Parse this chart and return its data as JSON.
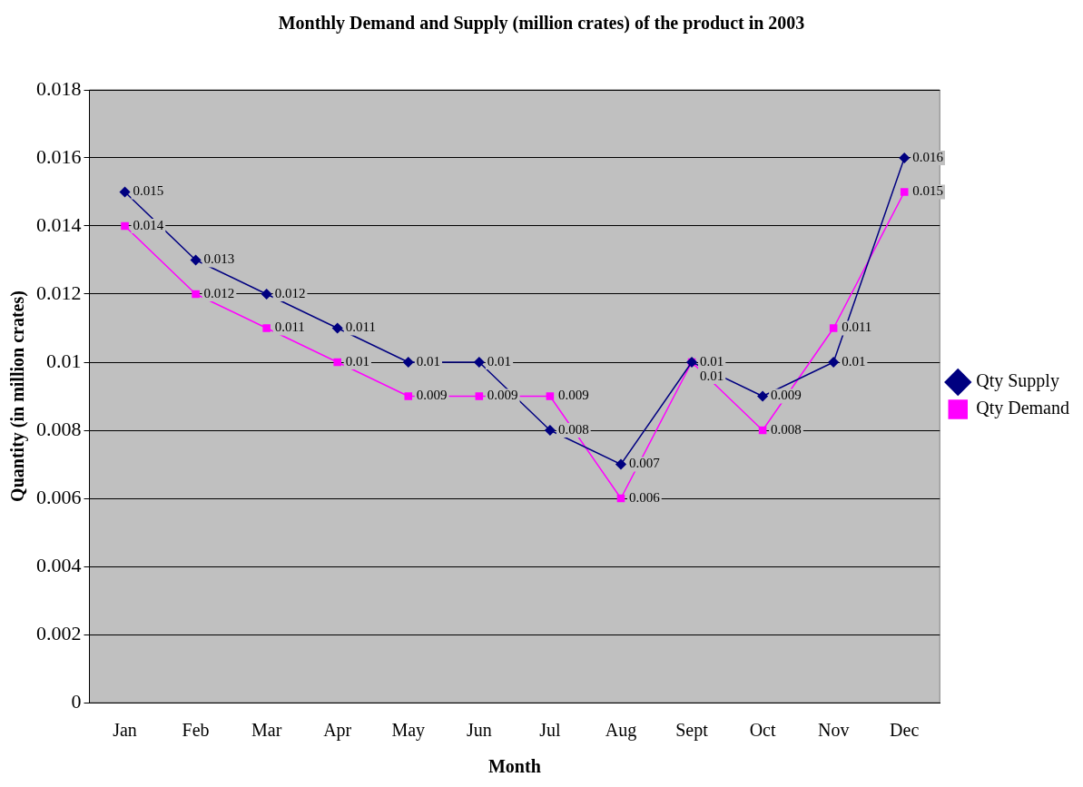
{
  "chart_data": {
    "type": "line",
    "title": "Monthly Demand and Supply (million crates) of the product in 2003",
    "xlabel": "Month",
    "ylabel": "Quantity (in million crates)",
    "categories": [
      "Jan",
      "Feb",
      "Mar",
      "Apr",
      "May",
      "Jun",
      "Jul",
      "Aug",
      "Sept",
      "Oct",
      "Nov",
      "Dec"
    ],
    "series": [
      {
        "name": "Qty Supply",
        "color": "#000080",
        "marker": "diamond",
        "values": [
          0.015,
          0.013,
          0.012,
          0.011,
          0.01,
          0.01,
          0.008,
          0.007,
          0.01,
          0.009,
          0.01,
          0.016
        ]
      },
      {
        "name": "Qty Demand",
        "color": "#ff00ff",
        "marker": "square",
        "values": [
          0.014,
          0.012,
          0.011,
          0.01,
          0.009,
          0.009,
          0.009,
          0.006,
          0.01,
          0.008,
          0.011,
          0.015
        ]
      }
    ],
    "ylim": [
      0,
      0.018
    ],
    "yticks": [
      0,
      0.002,
      0.004,
      0.006,
      0.008,
      0.01,
      0.012,
      0.014,
      0.016,
      0.018
    ],
    "grid": "y",
    "legend": "right",
    "data_labels": true,
    "line_style": "solid"
  }
}
